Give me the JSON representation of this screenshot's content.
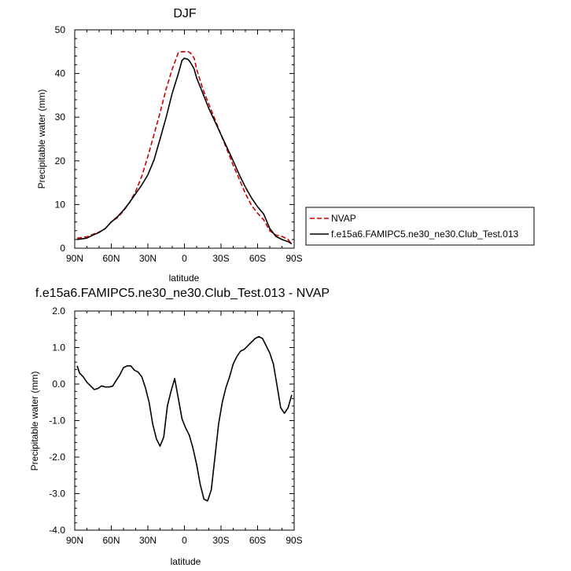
{
  "chart_data": [
    {
      "type": "line",
      "title": "DJF",
      "xlabel": "latitude",
      "ylabel": "Precipitable water (mm)",
      "xlim": [
        90,
        -90
      ],
      "ylim": [
        0,
        50
      ],
      "x_tick_labels": [
        "90N",
        "60N",
        "30N",
        "0",
        "30S",
        "60S",
        "90S"
      ],
      "x_tick_values": [
        90,
        60,
        30,
        0,
        -30,
        -60,
        -90
      ],
      "y_tick_labels": [
        "0",
        "10",
        "20",
        "30",
        "40",
        "50"
      ],
      "y_tick_values": [
        0,
        10,
        20,
        30,
        40,
        50
      ],
      "legend_position": "right",
      "series": [
        {
          "name": "NVAP",
          "color": "#cc0000",
          "style": "dashed",
          "x": [
            88,
            80,
            75,
            70,
            65,
            60,
            55,
            50,
            45,
            40,
            35,
            30,
            25,
            20,
            15,
            10,
            5,
            2,
            0,
            -3,
            -5,
            -8,
            -10,
            -15,
            -20,
            -25,
            -30,
            -35,
            -40,
            -45,
            -50,
            -55,
            -60,
            -65,
            -70,
            -75,
            -80,
            -85,
            -88
          ],
          "y": [
            2.3,
            2.6,
            3.2,
            3.7,
            4.5,
            6.0,
            7.0,
            8.5,
            10.5,
            13.0,
            16.5,
            21.0,
            26.0,
            31.0,
            36.5,
            41.0,
            44.8,
            45.0,
            45.0,
            45.0,
            44.7,
            43.5,
            41.0,
            36.5,
            33.0,
            29.5,
            26.0,
            22.5,
            19.0,
            15.8,
            12.5,
            9.8,
            8.0,
            6.5,
            4.0,
            3.0,
            2.7,
            2.0,
            0.9
          ]
        },
        {
          "name": "f.e15a6.FAMIPC5.ne30_ne30.Club_Test.013",
          "color": "#000000",
          "style": "solid",
          "x": [
            88,
            80,
            75,
            70,
            65,
            60,
            55,
            50,
            45,
            40,
            35,
            30,
            25,
            20,
            15,
            10,
            5,
            2,
            0,
            -3,
            -5,
            -8,
            -10,
            -15,
            -20,
            -25,
            -30,
            -35,
            -40,
            -45,
            -50,
            -55,
            -60,
            -65,
            -70,
            -75,
            -80,
            -85,
            -88
          ],
          "y": [
            2.0,
            2.3,
            3.0,
            3.6,
            4.5,
            6.0,
            7.2,
            8.7,
            10.5,
            12.5,
            14.5,
            16.8,
            20.2,
            25.0,
            30.0,
            35.5,
            40.0,
            43.0,
            43.5,
            43.2,
            42.5,
            41.0,
            39.0,
            35.5,
            32.0,
            29.0,
            26.0,
            23.0,
            20.0,
            16.8,
            14.0,
            11.5,
            9.5,
            7.8,
            4.5,
            2.7,
            2.0,
            1.5,
            1.0
          ]
        }
      ]
    },
    {
      "type": "line",
      "title": "f.e15a6.FAMIPC5.ne30_ne30.Club_Test.013 - NVAP",
      "xlabel": "latitude",
      "ylabel": "Precipitable water (mm)",
      "xlim": [
        90,
        -90
      ],
      "ylim": [
        -4.0,
        2.0
      ],
      "x_tick_labels": [
        "90N",
        "60N",
        "30N",
        "0",
        "30S",
        "60S",
        "90S"
      ],
      "x_tick_values": [
        90,
        60,
        30,
        0,
        -30,
        -60,
        -90
      ],
      "y_tick_labels": [
        "2.0",
        "1.0",
        "0.0",
        "-1.0",
        "-2.0",
        "-3.0",
        "-4.0"
      ],
      "y_tick_values": [
        2,
        1,
        0,
        -1,
        -2,
        -3,
        -4
      ],
      "series": [
        {
          "color": "#000000",
          "style": "solid",
          "x": [
            88,
            86,
            83,
            80,
            77,
            74,
            71,
            68,
            65,
            62,
            59,
            56,
            53,
            50,
            47,
            44,
            41,
            38,
            35,
            32,
            29,
            26,
            23,
            20,
            17,
            14,
            11,
            8,
            5,
            2,
            -1,
            -4,
            -7,
            -10,
            -13,
            -16,
            -19,
            -22,
            -25,
            -28,
            -31,
            -34,
            -37,
            -40,
            -43,
            -46,
            -49,
            -52,
            -55,
            -58,
            -61,
            -64,
            -67,
            -70,
            -73,
            -76,
            -79,
            -82,
            -85,
            -88
          ],
          "y": [
            0.5,
            0.3,
            0.2,
            0.05,
            -0.05,
            -0.15,
            -0.12,
            -0.05,
            -0.08,
            -0.08,
            -0.06,
            0.1,
            0.25,
            0.45,
            0.5,
            0.5,
            0.38,
            0.33,
            0.2,
            -0.1,
            -0.5,
            -1.1,
            -1.5,
            -1.7,
            -1.45,
            -0.6,
            -0.2,
            0.15,
            -0.4,
            -0.95,
            -1.2,
            -1.4,
            -1.75,
            -2.2,
            -2.75,
            -3.15,
            -3.2,
            -2.9,
            -2.0,
            -1.1,
            -0.5,
            -0.1,
            0.2,
            0.55,
            0.75,
            0.9,
            0.95,
            1.05,
            1.15,
            1.25,
            1.3,
            1.25,
            1.05,
            0.85,
            0.55,
            -0.05,
            -0.65,
            -0.8,
            -0.65,
            -0.3
          ]
        }
      ]
    }
  ]
}
